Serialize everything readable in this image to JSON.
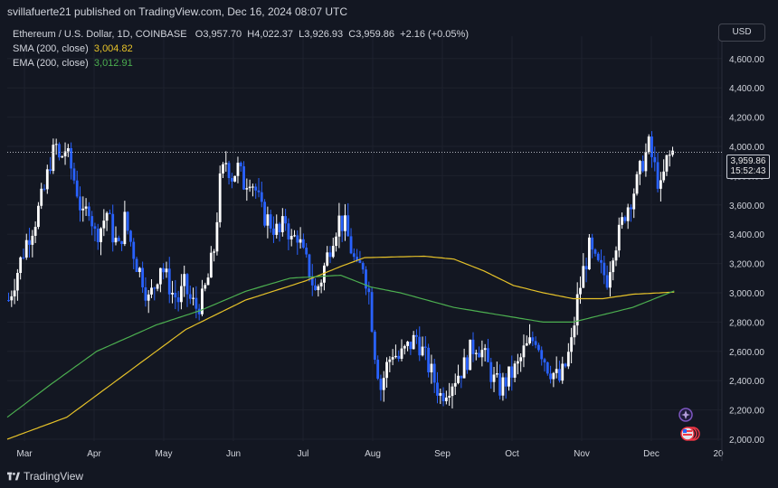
{
  "header": {
    "published": "svillafuerte21 published on TradingView.com, Dec 16, 2024 08:07 UTC"
  },
  "legend": {
    "symbol": "Ethereum / U.S. Dollar, 1D, COINBASE",
    "open_label": "O",
    "open": "3,957.70",
    "high_label": "H",
    "high": "4,022.37",
    "low_label": "L",
    "low": "3,926.93",
    "close_label": "C",
    "close": "3,959.86",
    "change": "+2.16 (+0.05%)",
    "sma_label": "SMA (200, close)",
    "sma_value": "3,004.82",
    "ema_label": "EMA (200, close)",
    "ema_value": "3,012.91"
  },
  "currency_button": "USD",
  "last_price": {
    "price": "3,959.86",
    "countdown": "15:52:43"
  },
  "footer": {
    "brand": "TradingView"
  },
  "colors": {
    "background": "#131722",
    "up_candle": "#ffffff",
    "down_candle": "#2962ff",
    "sma": "#e6c229",
    "ema": "#4caf50",
    "grid": "#1e222d",
    "text": "#d1d4dc"
  },
  "chart_data": {
    "type": "candlestick",
    "title": "Ethereum / U.S. Dollar, 1D, COINBASE",
    "ylim": [
      1950,
      4800
    ],
    "y_ticks": [
      "2,000.00",
      "2,200.00",
      "2,400.00",
      "2,600.00",
      "2,800.00",
      "3,000.00",
      "3,200.00",
      "3,400.00",
      "3,600.00",
      "3,800.00",
      "4,000.00",
      "4,200.00",
      "4,400.00",
      "4,600.00"
    ],
    "x_ticks": [
      "Mar",
      "Apr",
      "May",
      "Jun",
      "Jul",
      "Aug",
      "Sep",
      "Oct",
      "Nov",
      "Dec",
      "20"
    ],
    "grid": true,
    "price_path": [
      [
        0,
        2950
      ],
      [
        3,
        3150
      ],
      [
        6,
        3350
      ],
      [
        9,
        3500
      ],
      [
        12,
        3700
      ],
      [
        14,
        3900
      ],
      [
        16,
        4000
      ],
      [
        17,
        3900
      ],
      [
        19,
        3980
      ],
      [
        21,
        3850
      ],
      [
        23,
        3700
      ],
      [
        25,
        3500
      ],
      [
        27,
        3600
      ],
      [
        29,
        3400
      ],
      [
        31,
        3450
      ],
      [
        33,
        3550
      ],
      [
        35,
        3400
      ],
      [
        37,
        3300
      ],
      [
        39,
        3500
      ],
      [
        41,
        3350
      ],
      [
        43,
        3200
      ],
      [
        45,
        3100
      ],
      [
        47,
        2950
      ],
      [
        49,
        3050
      ],
      [
        51,
        3200
      ],
      [
        53,
        3100
      ],
      [
        55,
        3000
      ],
      [
        57,
        2950
      ],
      [
        59,
        3050
      ],
      [
        61,
        2950
      ],
      [
        63,
        2900
      ],
      [
        65,
        2950
      ],
      [
        67,
        3100
      ],
      [
        69,
        3300
      ],
      [
        71,
        3750
      ],
      [
        73,
        3900
      ],
      [
        75,
        3800
      ],
      [
        77,
        3850
      ],
      [
        79,
        3750
      ],
      [
        81,
        3800
      ],
      [
        83,
        3700
      ],
      [
        85,
        3550
      ],
      [
        87,
        3500
      ],
      [
        89,
        3450
      ],
      [
        91,
        3400
      ],
      [
        93,
        3500
      ],
      [
        95,
        3350
      ],
      [
        97,
        3400
      ],
      [
        99,
        3250
      ],
      [
        101,
        3150
      ],
      [
        103,
        3000
      ],
      [
        105,
        3100
      ],
      [
        107,
        3250
      ],
      [
        109,
        3400
      ],
      [
        111,
        3500
      ],
      [
        113,
        3450
      ],
      [
        115,
        3300
      ],
      [
        117,
        3150
      ],
      [
        119,
        3200
      ],
      [
        121,
        3000
      ],
      [
        123,
        2600
      ],
      [
        125,
        2350
      ],
      [
        127,
        2500
      ],
      [
        129,
        2600
      ],
      [
        131,
        2550
      ],
      [
        133,
        2600
      ],
      [
        135,
        2650
      ],
      [
        137,
        2700
      ],
      [
        139,
        2600
      ],
      [
        141,
        2500
      ],
      [
        143,
        2400
      ],
      [
        145,
        2300
      ],
      [
        147,
        2350
      ],
      [
        149,
        2400
      ],
      [
        151,
        2450
      ],
      [
        153,
        2500
      ],
      [
        155,
        2600
      ],
      [
        157,
        2650
      ],
      [
        159,
        2600
      ],
      [
        161,
        2500
      ],
      [
        163,
        2400
      ],
      [
        165,
        2350
      ],
      [
        167,
        2400
      ],
      [
        169,
        2450
      ],
      [
        171,
        2500
      ],
      [
        173,
        2600
      ],
      [
        175,
        2650
      ],
      [
        177,
        2700
      ],
      [
        179,
        2600
      ],
      [
        181,
        2500
      ],
      [
        183,
        2450
      ],
      [
        185,
        2400
      ],
      [
        187,
        2500
      ],
      [
        189,
        2650
      ],
      [
        191,
        2950
      ],
      [
        193,
        3150
      ],
      [
        195,
        3300
      ],
      [
        197,
        3200
      ],
      [
        199,
        3150
      ],
      [
        201,
        3100
      ],
      [
        203,
        3300
      ],
      [
        205,
        3400
      ],
      [
        207,
        3550
      ],
      [
        209,
        3650
      ],
      [
        211,
        3750
      ],
      [
        213,
        3900
      ],
      [
        215,
        4000
      ],
      [
        217,
        3850
      ],
      [
        219,
        3700
      ],
      [
        221,
        3900
      ],
      [
        223,
        3960
      ]
    ],
    "sma_200": [
      [
        0,
        2000
      ],
      [
        20,
        2150
      ],
      [
        40,
        2450
      ],
      [
        60,
        2750
      ],
      [
        80,
        2950
      ],
      [
        100,
        3080
      ],
      [
        112,
        3180
      ],
      [
        120,
        3240
      ],
      [
        140,
        3250
      ],
      [
        150,
        3230
      ],
      [
        160,
        3150
      ],
      [
        170,
        3050
      ],
      [
        180,
        3000
      ],
      [
        190,
        2960
      ],
      [
        200,
        2960
      ],
      [
        210,
        2990
      ],
      [
        224,
        3005
      ]
    ],
    "ema_200": [
      [
        0,
        2150
      ],
      [
        15,
        2380
      ],
      [
        30,
        2600
      ],
      [
        50,
        2780
      ],
      [
        65,
        2880
      ],
      [
        80,
        3010
      ],
      [
        95,
        3100
      ],
      [
        112,
        3120
      ],
      [
        122,
        3040
      ],
      [
        132,
        3000
      ],
      [
        150,
        2900
      ],
      [
        165,
        2850
      ],
      [
        180,
        2800
      ],
      [
        190,
        2800
      ],
      [
        200,
        2850
      ],
      [
        210,
        2900
      ],
      [
        224,
        3013
      ]
    ],
    "last_price": 3959.86
  }
}
